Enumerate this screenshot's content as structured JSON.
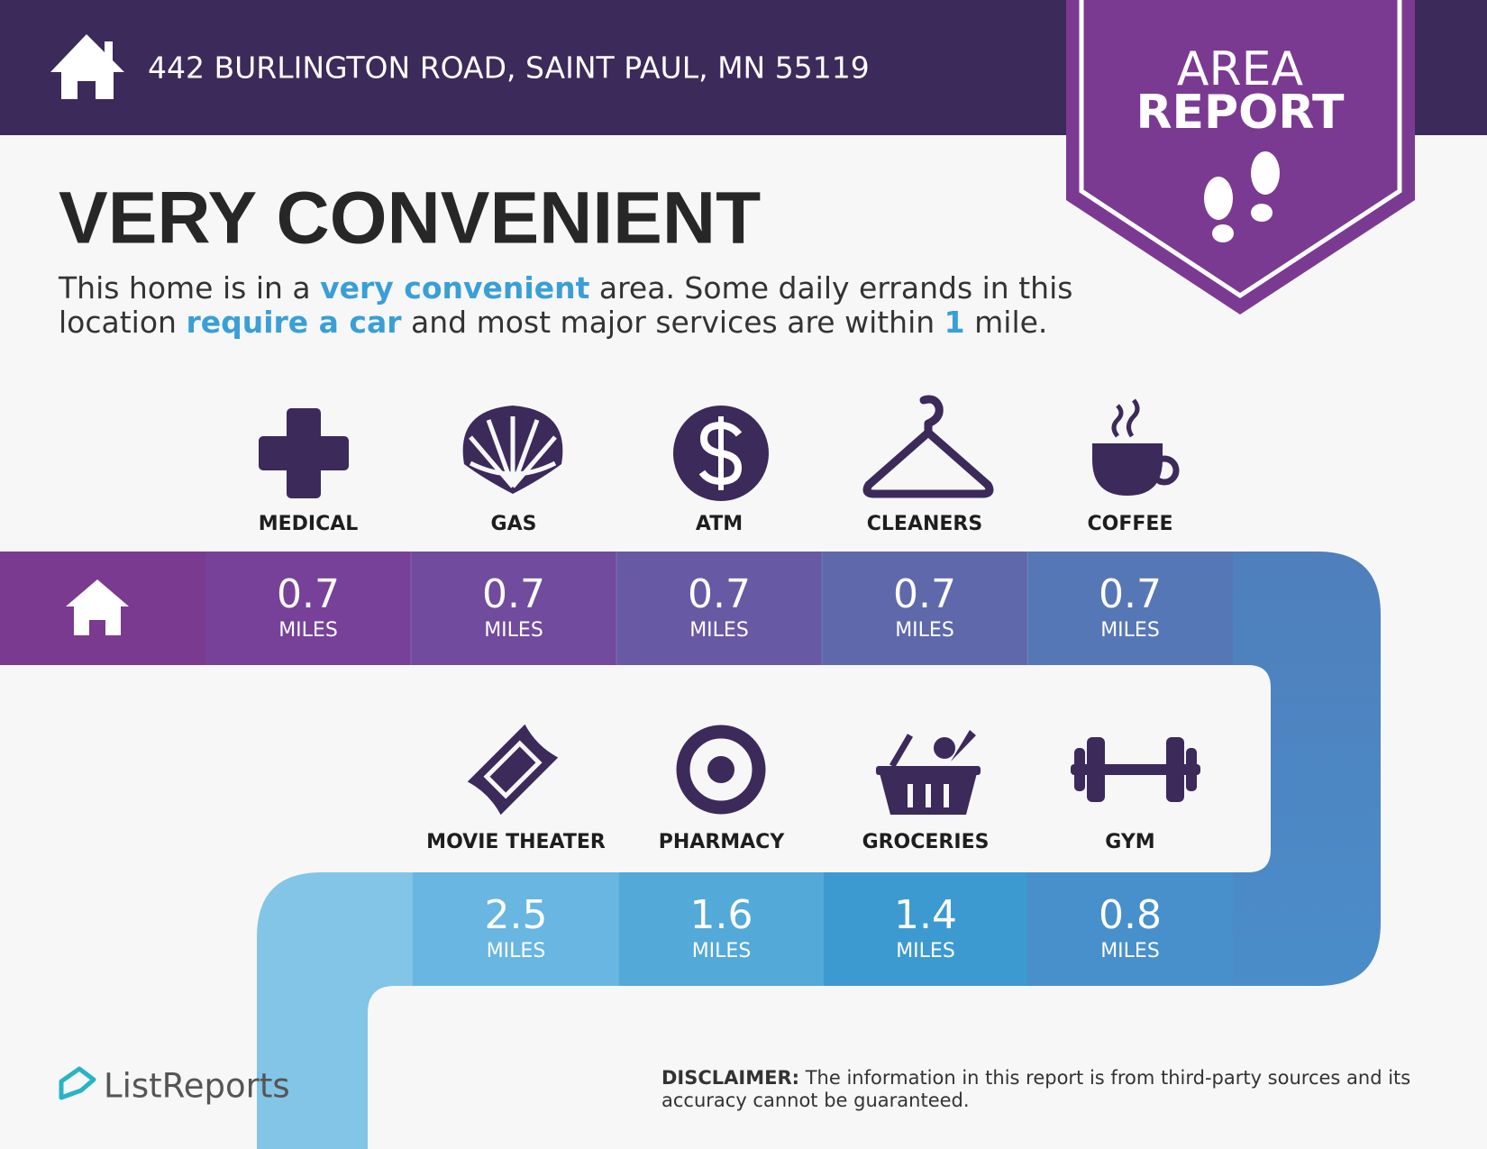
{
  "header": {
    "address": "442 BURLINGTON ROAD, SAINT PAUL, MN 55119",
    "badge": [
      "AREA",
      "REPORT"
    ]
  },
  "headline": "VERY CONVENIENT",
  "summary": [
    [
      {
        "text": "This home is in a "
      },
      {
        "text": "very convenient",
        "highlight": true
      },
      {
        "text": " area. Some daily errands in this"
      }
    ],
    [
      {
        "text": "location "
      },
      {
        "text": "require a car",
        "highlight": true
      },
      {
        "text": " and most major services are within "
      },
      {
        "text": "1",
        "highlight": true
      },
      {
        "text": " mile."
      }
    ]
  ],
  "unit": "MILES",
  "services": [
    {
      "label": "MEDICAL",
      "distance": 0.7
    },
    {
      "label": "GAS",
      "distance": 0.7
    },
    {
      "label": "ATM",
      "distance": 0.7
    },
    {
      "label": "CLEANERS",
      "distance": 0.7
    },
    {
      "label": "COFFEE",
      "distance": 0.7
    },
    {
      "label": "MOVIE THEATER",
      "distance": 2.5
    },
    {
      "label": "PHARMACY",
      "distance": 1.6
    },
    {
      "label": "GROCERIES",
      "distance": 1.4
    },
    {
      "label": "GYM",
      "distance": 0.8
    }
  ],
  "brand": "ListReports",
  "disclaimer": {
    "label": "DISCLAIMER:",
    "text": "The information in this report is from third-party sources and its",
    "text2": "accuracy cannot be guaranteed."
  }
}
